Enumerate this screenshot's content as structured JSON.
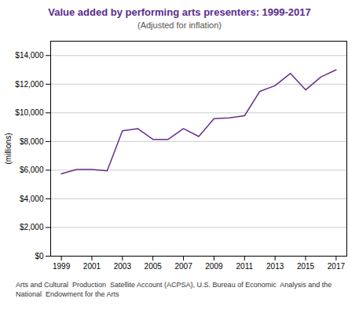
{
  "chart_data": {
    "type": "line",
    "title": "Value added by performing arts presenters: 1999-2017",
    "subtitle": "(Adjusted for inflation)",
    "ylabel": "(millions)",
    "annotations": [
      "Arts and Cultural  Production  Satellite Account (ACPSA), U.S. Bureau of Economic  Analysis and the",
      "National  Endowment for the Arts"
    ],
    "x": [
      1999,
      2000,
      2001,
      2002,
      2003,
      2004,
      2005,
      2006,
      2007,
      2008,
      2009,
      2010,
      2011,
      2012,
      2013,
      2014,
      2015,
      2016,
      2017
    ],
    "values": [
      5750,
      6050,
      6050,
      5950,
      8750,
      8900,
      8150,
      8150,
      8900,
      8350,
      9600,
      9650,
      9800,
      11500,
      11900,
      12750,
      11600,
      12500,
      13000
    ],
    "color": "#6B2D8B",
    "xlim": [
      1998.3,
      2017.7
    ],
    "xticks": [
      1999,
      2001,
      2003,
      2005,
      2007,
      2009,
      2011,
      2013,
      2015,
      2017
    ],
    "ylim": [
      0,
      15000
    ],
    "yticks": [
      {
        "value": 0,
        "label": "$0"
      },
      {
        "value": 2000,
        "label": "$2,000"
      },
      {
        "value": 4000,
        "label": "$4,000"
      },
      {
        "value": 6000,
        "label": "$6,000"
      },
      {
        "value": 8000,
        "label": "$8,000"
      },
      {
        "value": 10000,
        "label": "$10,000"
      },
      {
        "value": 12000,
        "label": "$12,000"
      },
      {
        "value": 14000,
        "label": "$14,000"
      }
    ],
    "grid": true
  }
}
